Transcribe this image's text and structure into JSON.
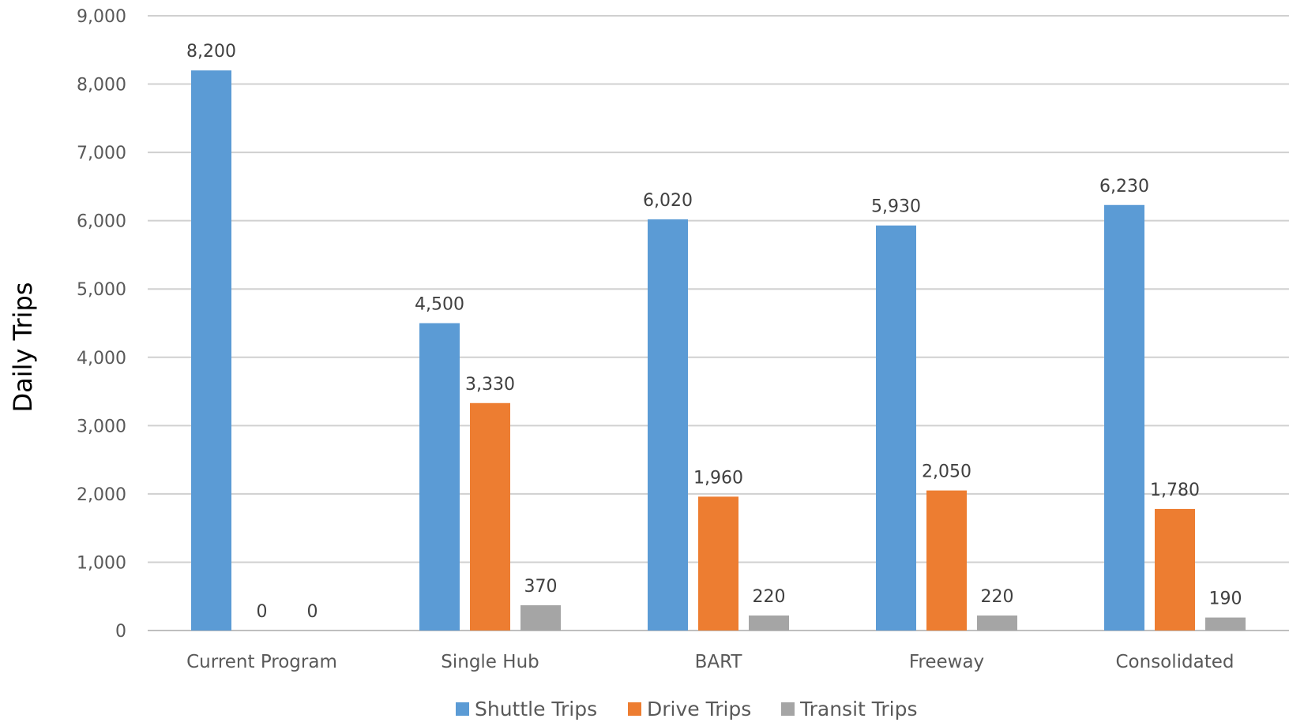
{
  "chart_data": {
    "type": "bar",
    "title": "",
    "xlabel": "",
    "ylabel": "Daily Trips",
    "ylim": [
      0,
      9000
    ],
    "yticks": [
      0,
      1000,
      2000,
      3000,
      4000,
      5000,
      6000,
      7000,
      8000,
      9000
    ],
    "ytick_labels": [
      "0",
      "1,000",
      "2,000",
      "3,000",
      "4,000",
      "5,000",
      "6,000",
      "7,000",
      "8,000",
      "9,000"
    ],
    "grid": true,
    "legend_position": "bottom",
    "categories": [
      "Current Program",
      "Single Hub",
      "BART",
      "Freeway",
      "Consolidated"
    ],
    "series": [
      {
        "name": "Shuttle Trips",
        "color": "#5B9BD5",
        "values": [
          8200,
          4500,
          6020,
          5930,
          6230
        ],
        "labels": [
          "8,200",
          "4,500",
          "6,020",
          "5,930",
          "6,230"
        ]
      },
      {
        "name": "Drive Trips",
        "color": "#ED7D31",
        "values": [
          0,
          3330,
          1960,
          2050,
          1780
        ],
        "labels": [
          "0",
          "3,330",
          "1,960",
          "2,050",
          "1,780"
        ]
      },
      {
        "name": "Transit Trips",
        "color": "#A5A5A5",
        "values": [
          0,
          370,
          220,
          220,
          190
        ],
        "labels": [
          "0",
          "370",
          "220",
          "220",
          "190"
        ]
      }
    ]
  }
}
